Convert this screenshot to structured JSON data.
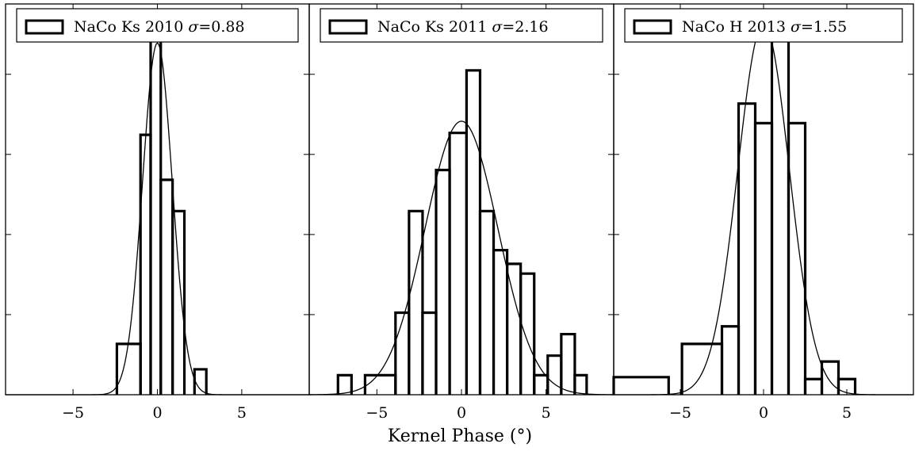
{
  "figure": {
    "xlabel": "Kernel Phase (°)"
  },
  "chart_data": [
    {
      "type": "histogram",
      "legend": "NaCo Ks 2010 σ=0.88",
      "legend_name": "NaCo Ks 2010",
      "legend_sigma": "0.88",
      "sigma": 0.88,
      "xlim": [
        -9,
        9
      ],
      "ylim": [
        0,
        1.0
      ],
      "xticks": [
        -5,
        0,
        5
      ],
      "xtick_labels": [
        "−5",
        "0",
        "5"
      ],
      "bins": [
        {
          "x0": -2.4,
          "x1": -1.0,
          "h": 0.13
        },
        {
          "x0": -1.0,
          "x1": -0.4,
          "h": 0.665
        },
        {
          "x0": -0.4,
          "x1": 0.2,
          "h": 0.935
        },
        {
          "x0": 0.2,
          "x1": 0.9,
          "h": 0.55
        },
        {
          "x0": 0.9,
          "x1": 1.6,
          "h": 0.47
        },
        {
          "x0": 2.2,
          "x1": 2.9,
          "h": 0.065
        }
      ],
      "gauss": {
        "mu": 0.0,
        "sigma": 0.88,
        "peak": 0.9
      }
    },
    {
      "type": "histogram",
      "legend": "NaCo Ks 2011 σ=2.16",
      "legend_name": "NaCo Ks 2011",
      "legend_sigma": "2.16",
      "sigma": 2.16,
      "xlim": [
        -9,
        9
      ],
      "ylim": [
        0,
        1.0
      ],
      "xticks": [
        -5,
        0,
        5
      ],
      "xtick_labels": [
        "−5",
        "0",
        "5"
      ],
      "bins": [
        {
          "x0": -7.3,
          "x1": -6.5,
          "h": 0.05
        },
        {
          "x0": -5.7,
          "x1": -3.9,
          "h": 0.05
        },
        {
          "x0": -3.9,
          "x1": -3.1,
          "h": 0.21
        },
        {
          "x0": -3.1,
          "x1": -2.3,
          "h": 0.47
        },
        {
          "x0": -2.3,
          "x1": -1.5,
          "h": 0.21
        },
        {
          "x0": -1.5,
          "x1": -0.7,
          "h": 0.575
        },
        {
          "x0": -0.7,
          "x1": 0.3,
          "h": 0.67
        },
        {
          "x0": 0.3,
          "x1": 1.1,
          "h": 0.83
        },
        {
          "x0": 1.1,
          "x1": 1.9,
          "h": 0.47
        },
        {
          "x0": 1.9,
          "x1": 2.7,
          "h": 0.37
        },
        {
          "x0": 2.7,
          "x1": 3.5,
          "h": 0.335
        },
        {
          "x0": 3.5,
          "x1": 4.3,
          "h": 0.31
        },
        {
          "x0": 4.3,
          "x1": 5.1,
          "h": 0.05
        },
        {
          "x0": 5.1,
          "x1": 5.9,
          "h": 0.1
        },
        {
          "x0": 5.9,
          "x1": 6.7,
          "h": 0.155
        },
        {
          "x0": 6.7,
          "x1": 7.4,
          "h": 0.05
        }
      ],
      "gauss": {
        "mu": 0.0,
        "sigma": 2.16,
        "peak": 0.7
      }
    },
    {
      "type": "histogram",
      "legend": "NaCo H 2013 σ=1.55",
      "legend_name": "NaCo H 2013",
      "legend_sigma": "1.55",
      "sigma": 1.55,
      "xlim": [
        -9,
        9
      ],
      "ylim": [
        0,
        1.0
      ],
      "xticks": [
        -5,
        0,
        5
      ],
      "xtick_labels": [
        "−5",
        "0",
        "5"
      ],
      "bins": [
        {
          "x0": -9,
          "x1": -5.7,
          "h": 0.045
        },
        {
          "x0": -4.9,
          "x1": -2.5,
          "h": 0.13
        },
        {
          "x0": -2.5,
          "x1": -1.5,
          "h": 0.175
        },
        {
          "x0": -1.5,
          "x1": -0.5,
          "h": 0.745
        },
        {
          "x0": -0.5,
          "x1": 0.5,
          "h": 0.695
        },
        {
          "x0": 0.5,
          "x1": 1.5,
          "h": 0.94
        },
        {
          "x0": 1.5,
          "x1": 2.5,
          "h": 0.695
        },
        {
          "x0": 2.5,
          "x1": 3.5,
          "h": 0.04
        },
        {
          "x0": 3.5,
          "x1": 4.5,
          "h": 0.085
        },
        {
          "x0": 4.5,
          "x1": 5.5,
          "h": 0.04
        }
      ],
      "gauss": {
        "mu": 0.0,
        "sigma": 1.55,
        "peak": 0.95
      }
    }
  ]
}
